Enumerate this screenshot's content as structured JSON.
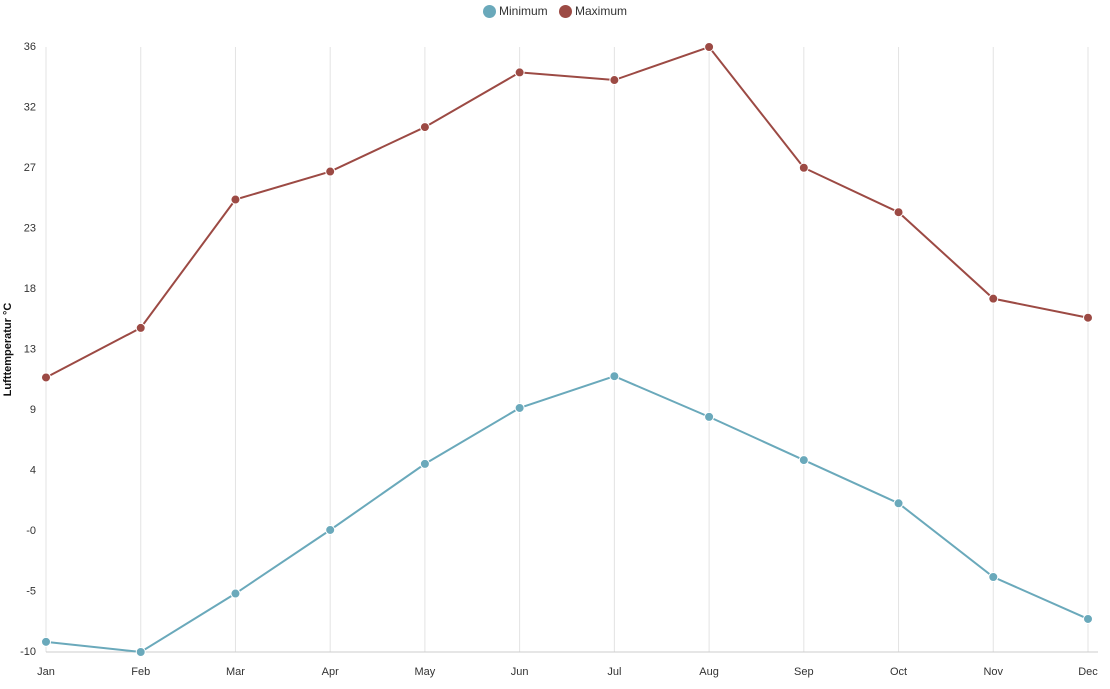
{
  "chart_data": {
    "type": "line",
    "categories": [
      "Jan",
      "Feb",
      "Mar",
      "Apr",
      "May",
      "Jun",
      "Jul",
      "Aug",
      "Sep",
      "Oct",
      "Nov",
      "Dec"
    ],
    "series": [
      {
        "name": "Minimum",
        "color": "#6aa9bb",
        "values": [
          -9.2,
          -10.0,
          -5.4,
          -0.4,
          4.8,
          9.2,
          11.7,
          8.5,
          5.1,
          1.7,
          -4.1,
          -7.4
        ]
      },
      {
        "name": "Maximum",
        "color": "#9c4a44",
        "values": [
          11.6,
          15.5,
          25.6,
          27.8,
          31.3,
          35.6,
          35.0,
          37.6,
          28.1,
          24.6,
          17.8,
          16.3
        ]
      }
    ],
    "ylabel": "Lufttemperatur °C",
    "xlabel": "",
    "yticks": [
      "-10",
      "-5",
      "-0",
      "4",
      "9",
      "13",
      "18",
      "23",
      "27",
      "32",
      "36"
    ],
    "ylim": [
      -10,
      37.6
    ],
    "grid": "vertical",
    "legend_position": "top-center"
  }
}
